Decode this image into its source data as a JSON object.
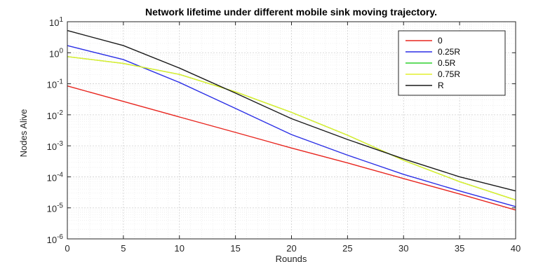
{
  "chart_data": {
    "type": "line",
    "title": "Network lifetime under different mobile sink moving trajectory.",
    "xlabel": "Rounds",
    "ylabel": "Nodes Alive",
    "xlim": [
      0,
      40
    ],
    "ylim": [
      1e-06,
      10
    ],
    "yscale": "log",
    "grid": true,
    "minor_grid": true,
    "legend_position": "top-right",
    "x_ticks": [
      0,
      5,
      10,
      15,
      20,
      25,
      30,
      35,
      40
    ],
    "y_tick_exponents": [
      -6,
      -5,
      -4,
      -3,
      -2,
      -1,
      0,
      1
    ],
    "x": [
      0,
      5,
      10,
      15,
      20,
      25,
      30,
      35,
      40
    ],
    "series": [
      {
        "name": "0",
        "color": "#e8261f",
        "values": [
          0.085,
          0.027,
          0.0085,
          0.0027,
          0.00085,
          0.00028,
          8.8e-05,
          2.8e-05,
          8.5e-06
        ]
      },
      {
        "name": "0.25R",
        "color": "#2b2fe6",
        "values": [
          1.7,
          0.6,
          0.11,
          0.016,
          0.0023,
          0.0005,
          0.00012,
          3.5e-05,
          1.1e-05
        ]
      },
      {
        "name": "0.5R",
        "color": "#2fd12f",
        "values": [
          0.75,
          0.45,
          0.2,
          0.055,
          0.012,
          0.0022,
          0.00034,
          7e-05,
          1.8e-05
        ]
      },
      {
        "name": "0.75R",
        "color": "#e3ef2f",
        "values": [
          0.75,
          0.45,
          0.2,
          0.055,
          0.012,
          0.0022,
          0.00034,
          7e-05,
          1.8e-05
        ]
      },
      {
        "name": "R",
        "color": "#1a1a1a",
        "values": [
          5.2,
          1.7,
          0.32,
          0.05,
          0.0075,
          0.0016,
          0.00038,
          0.0001,
          3.5e-05
        ]
      }
    ]
  }
}
